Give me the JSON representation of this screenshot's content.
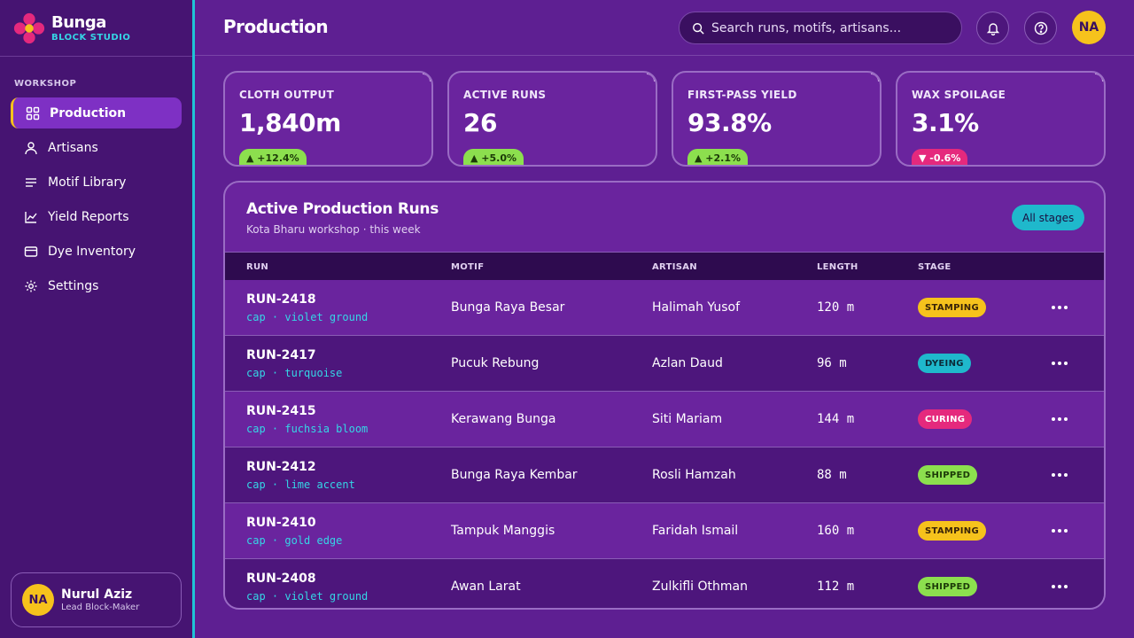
{
  "brand": {
    "name": "Bunga",
    "subtitle": "BLOCK STUDIO"
  },
  "sidebar": {
    "section_label": "WORKSHOP",
    "items": [
      {
        "label": "Production",
        "icon": "grid-icon",
        "active": true
      },
      {
        "label": "Artisans",
        "icon": "user-icon",
        "active": false
      },
      {
        "label": "Motif Library",
        "icon": "list-icon",
        "active": false
      },
      {
        "label": "Yield Reports",
        "icon": "chart-icon",
        "active": false
      },
      {
        "label": "Dye Inventory",
        "icon": "card-icon",
        "active": false
      },
      {
        "label": "Settings",
        "icon": "gear-icon",
        "active": false
      }
    ],
    "user": {
      "initials": "NA",
      "name": "Nurul Aziz",
      "role": "Lead Block-Maker"
    }
  },
  "header": {
    "title": "Production",
    "search_placeholder": "Search runs, motifs, artisans...",
    "avatar_initials": "NA"
  },
  "kpis": [
    {
      "label": "CLOTH OUTPUT",
      "value": "1,840m",
      "delta": "▲ +12.4%",
      "trend": "up"
    },
    {
      "label": "ACTIVE RUNS",
      "value": "26",
      "delta": "▲ +5.0%",
      "trend": "up"
    },
    {
      "label": "FIRST-PASS YIELD",
      "value": "93.8%",
      "delta": "▲ +2.1%",
      "trend": "up"
    },
    {
      "label": "WAX SPOILAGE",
      "value": "3.1%",
      "delta": "▼ -0.6%",
      "trend": "down"
    }
  ],
  "table": {
    "title": "Active Production Runs",
    "subtitle": "Kota Bharu workshop · this week",
    "filter_label": "All stages",
    "columns": [
      "RUN",
      "MOTIF",
      "ARTISAN",
      "LENGTH",
      "STAGE"
    ],
    "rows": [
      {
        "run": "RUN-2418",
        "sub": "cap · violet ground",
        "motif": "Bunga Raya Besar",
        "artisan": "Halimah Yusof",
        "length": "120 m",
        "stage": "STAMPING"
      },
      {
        "run": "RUN-2417",
        "sub": "cap · turquoise",
        "motif": "Pucuk Rebung",
        "artisan": "Azlan Daud",
        "length": "96 m",
        "stage": "DYEING"
      },
      {
        "run": "RUN-2415",
        "sub": "cap · fuchsia bloom",
        "motif": "Kerawang Bunga",
        "artisan": "Siti Mariam",
        "length": "144 m",
        "stage": "CURING"
      },
      {
        "run": "RUN-2412",
        "sub": "cap · lime accent",
        "motif": "Bunga Raya Kembar",
        "artisan": "Rosli Hamzah",
        "length": "88 m",
        "stage": "SHIPPED"
      },
      {
        "run": "RUN-2410",
        "sub": "cap · gold edge",
        "motif": "Tampuk Manggis",
        "artisan": "Faridah Ismail",
        "length": "160 m",
        "stage": "STAMPING"
      },
      {
        "run": "RUN-2408",
        "sub": "cap · violet ground",
        "motif": "Awan Larat",
        "artisan": "Zulkifli Othman",
        "length": "112 m",
        "stage": "SHIPPED"
      }
    ]
  },
  "stage_colors": {
    "STAMPING": {
      "bg": "#f6c21c",
      "fg": "#3a2408"
    },
    "DYEING": {
      "bg": "#1fb8cc",
      "fg": "#0c2a38"
    },
    "CURING": {
      "bg": "#e5297d",
      "fg": "#ffffff"
    },
    "SHIPPED": {
      "bg": "#8cdf4e",
      "fg": "#1c3a08"
    }
  }
}
